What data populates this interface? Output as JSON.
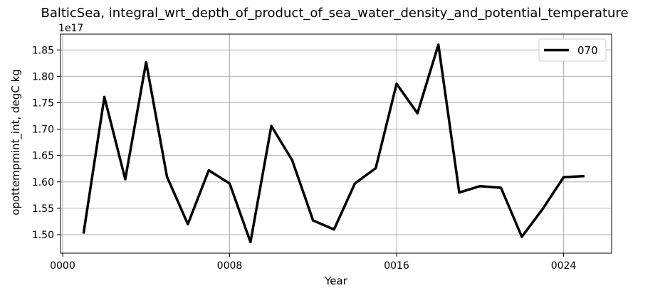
{
  "chart_data": {
    "type": "line",
    "title": "BalticSea, integral_wrt_depth_of_product_of_sea_water_density_and_potential_temperature",
    "xlabel": "Year",
    "ylabel": "opottempmint_int, degC kg",
    "y_offset_label": "1e17",
    "xlim": [
      -0.1,
      26.3
    ],
    "ylim": [
      1.465,
      1.88
    ],
    "x_ticks": [
      0,
      8,
      16,
      24
    ],
    "x_tick_labels": [
      "0000",
      "0008",
      "0016",
      "0024"
    ],
    "y_ticks": [
      1.5,
      1.55,
      1.6,
      1.65,
      1.7,
      1.75,
      1.8,
      1.85
    ],
    "y_tick_labels": [
      "1.50",
      "1.55",
      "1.60",
      "1.65",
      "1.70",
      "1.75",
      "1.80",
      "1.85"
    ],
    "grid": true,
    "legend_position": "top-right",
    "series": [
      {
        "name": "070",
        "color": "#000000",
        "x": [
          1,
          2,
          3,
          4,
          5,
          6,
          7,
          8,
          9,
          10,
          11,
          12,
          13,
          14,
          15,
          16,
          17,
          18,
          19,
          20,
          21,
          22,
          23,
          24,
          25
        ],
        "values": [
          1.502,
          1.761,
          1.605,
          1.827,
          1.61,
          1.52,
          1.622,
          1.597,
          1.486,
          1.706,
          1.641,
          1.527,
          1.51,
          1.597,
          1.626,
          1.786,
          1.73,
          1.86,
          1.58,
          1.592,
          1.589,
          1.496,
          1.549,
          1.609,
          1.611
        ]
      }
    ]
  }
}
